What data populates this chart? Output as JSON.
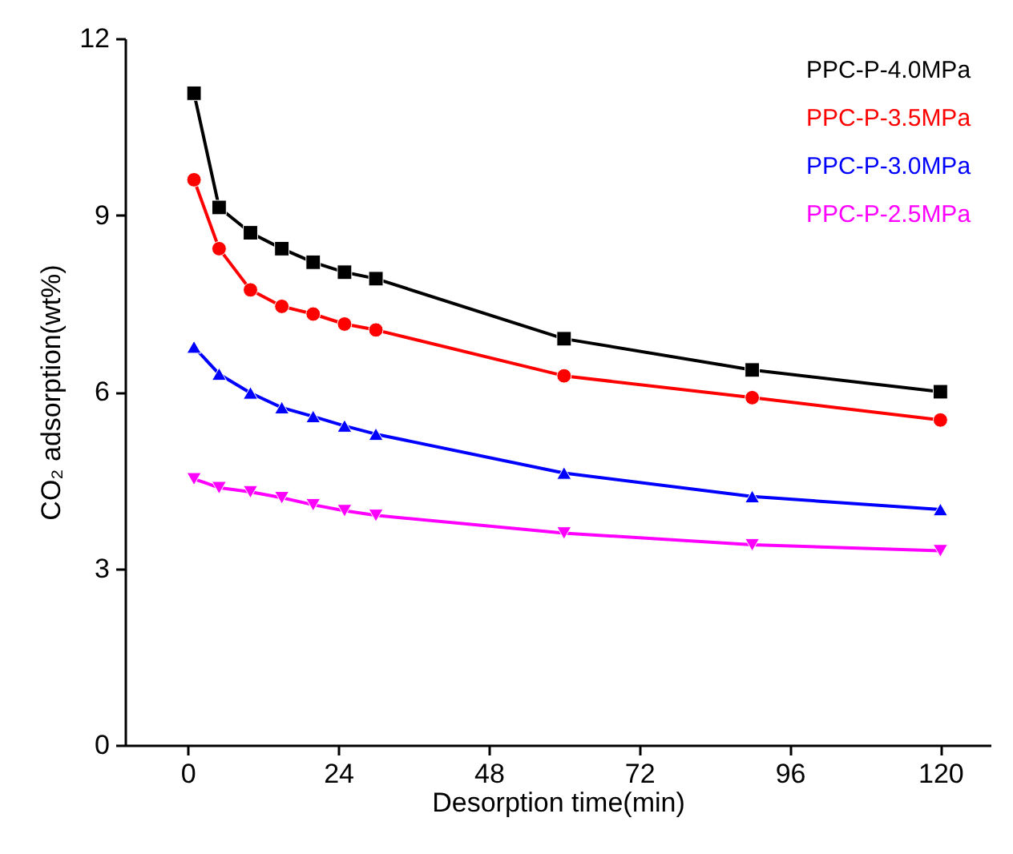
{
  "chart_data": {
    "type": "line",
    "xlabel": "Desorption time(min)",
    "ylabel": "CO₂ adsorption(wt%)",
    "x": [
      1,
      5,
      10,
      15,
      20,
      25,
      30,
      60,
      90,
      120
    ],
    "series": [
      {
        "name": "PPC-P-4.0MPa",
        "color": "#000000",
        "marker": "square",
        "values": [
          11.07,
          9.13,
          8.7,
          8.43,
          8.2,
          8.03,
          7.92,
          6.9,
          6.37,
          6.0
        ]
      },
      {
        "name": "PPC-P-3.5MPa",
        "color": "#ff0000",
        "marker": "circle",
        "values": [
          9.6,
          8.43,
          7.73,
          7.45,
          7.32,
          7.15,
          7.05,
          6.27,
          5.9,
          5.52
        ]
      },
      {
        "name": "PPC-P-3.0MPa",
        "color": "#0000ff",
        "marker": "triangle",
        "values": [
          6.76,
          6.3,
          5.98,
          5.73,
          5.58,
          5.42,
          5.28,
          4.62,
          4.22,
          4.0
        ]
      },
      {
        "name": "PPC-P-2.5MPa",
        "color": "#ff00ff",
        "marker": "triangle-down",
        "values": [
          4.52,
          4.37,
          4.3,
          4.2,
          4.08,
          3.98,
          3.9,
          3.6,
          3.4,
          3.3
        ]
      }
    ],
    "xlim": [
      -10,
      128
    ],
    "xticks": [
      0,
      24,
      48,
      72,
      96,
      120
    ],
    "ylim": [
      0,
      12
    ],
    "yticks": [
      0,
      3,
      6,
      9,
      12
    ],
    "grid": false,
    "legend": "top right",
    "line_style": "solid"
  }
}
